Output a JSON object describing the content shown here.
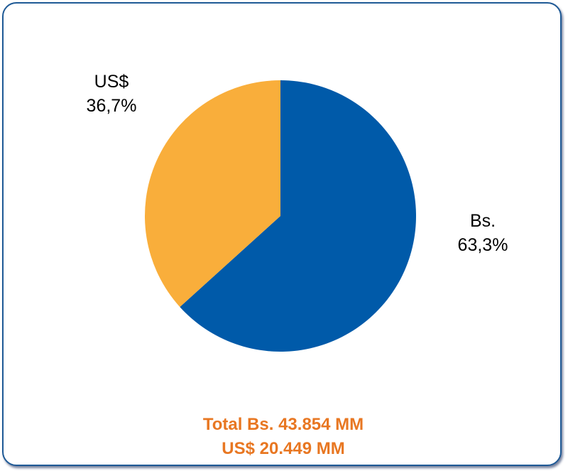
{
  "chart_data": {
    "type": "pie",
    "title": "",
    "slices": [
      {
        "label": "Bs.",
        "value": 63.3,
        "value_label": "63,3%",
        "color": "#005aa9"
      },
      {
        "label": "US$",
        "value": 36.7,
        "value_label": "36,7%",
        "color": "#f9ae3b"
      }
    ],
    "start_angle": "12 o'clock",
    "direction": "clockwise",
    "legend": "none"
  },
  "footer": {
    "total_line1": "Total Bs. 43.854 MM",
    "total_line2": "US$ 20.449 MM",
    "color": "#e87722"
  }
}
